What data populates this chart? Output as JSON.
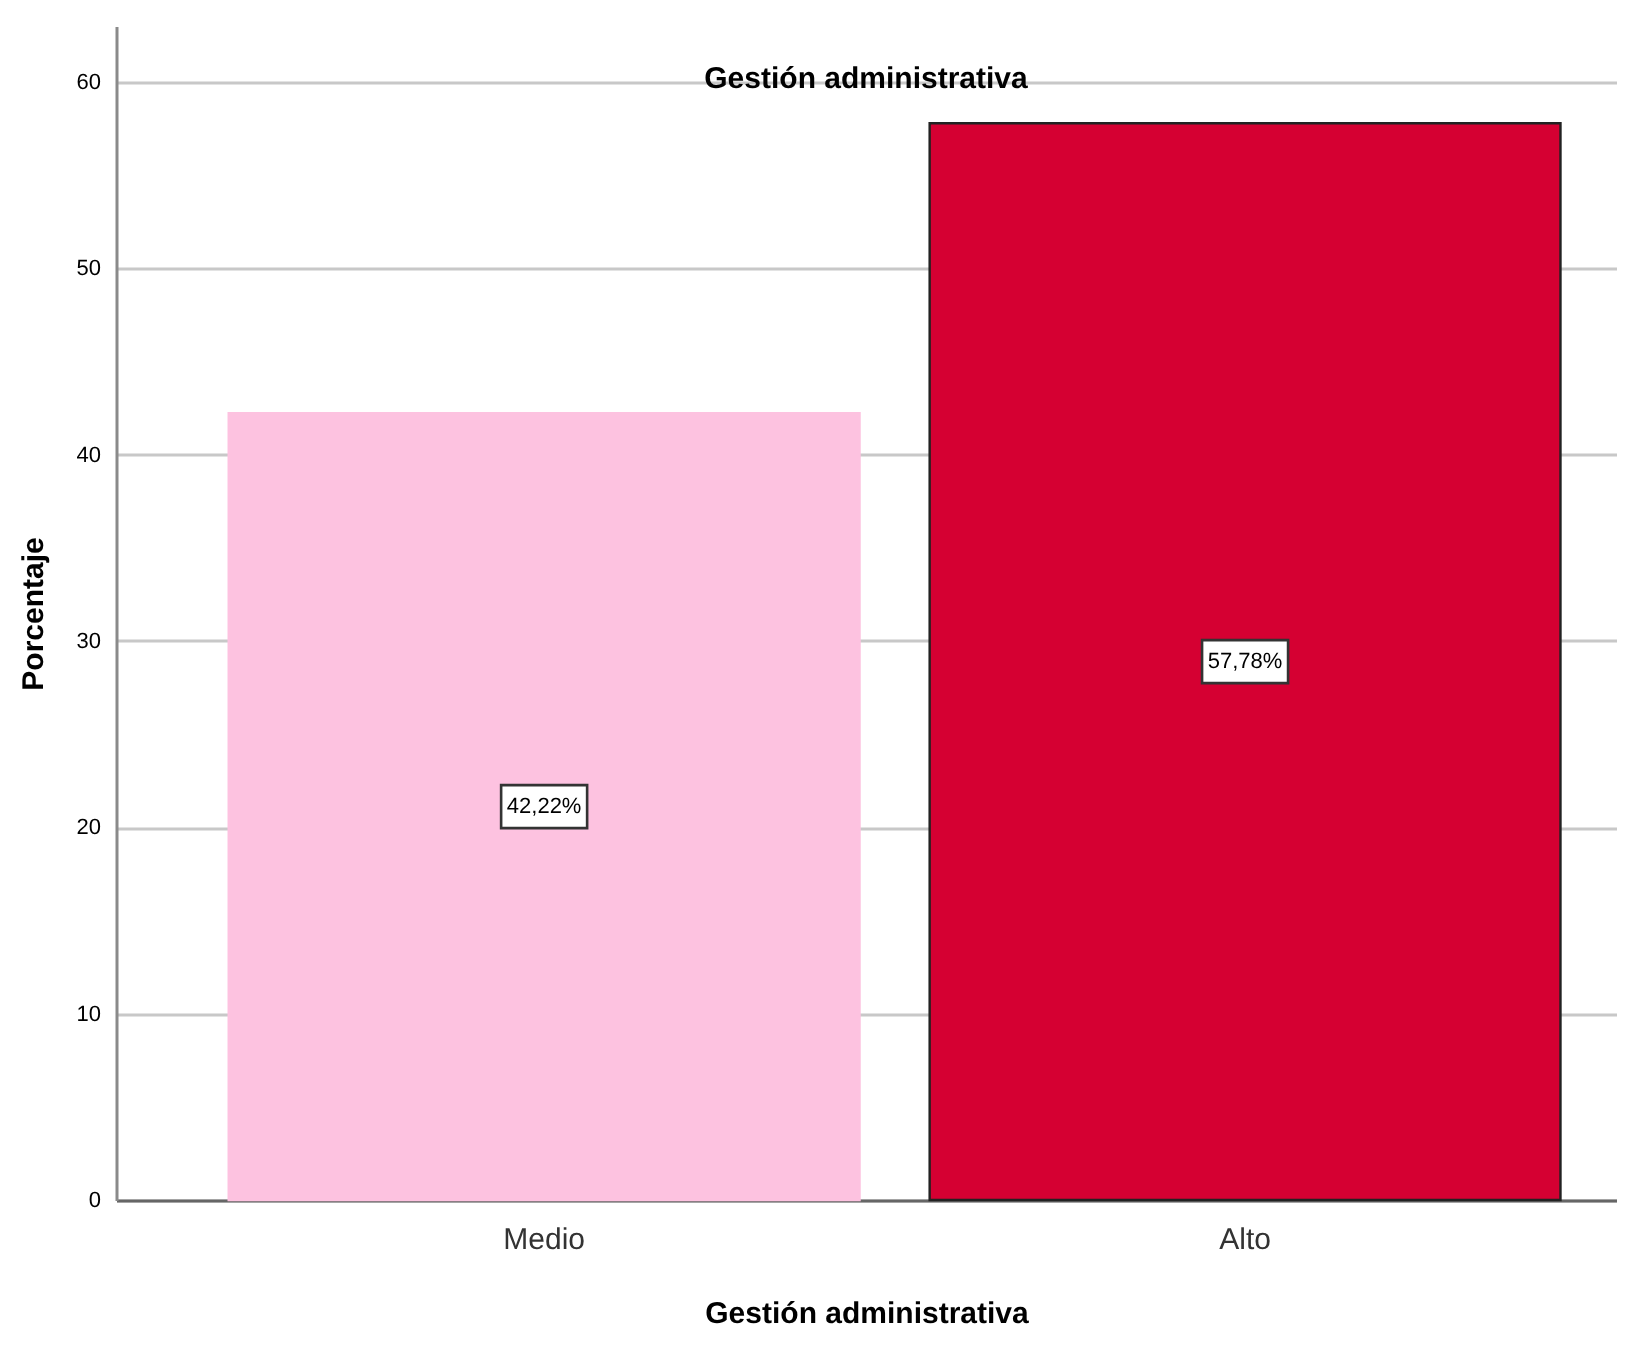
{
  "chart_data": {
    "type": "bar",
    "title": "Gestión administrativa",
    "xlabel": "Gestión administrativa",
    "ylabel": "Porcentaje",
    "categories": [
      "Medio",
      "Alto"
    ],
    "values": [
      42.22,
      57.78
    ],
    "colors": [
      "#fdc2e0",
      "#d50032"
    ],
    "value_labels": [
      "42,22%",
      "57,78%"
    ],
    "ylim": [
      0,
      63
    ],
    "yticks": [
      0,
      10,
      20,
      30,
      40,
      50,
      60
    ],
    "grid": "y"
  }
}
